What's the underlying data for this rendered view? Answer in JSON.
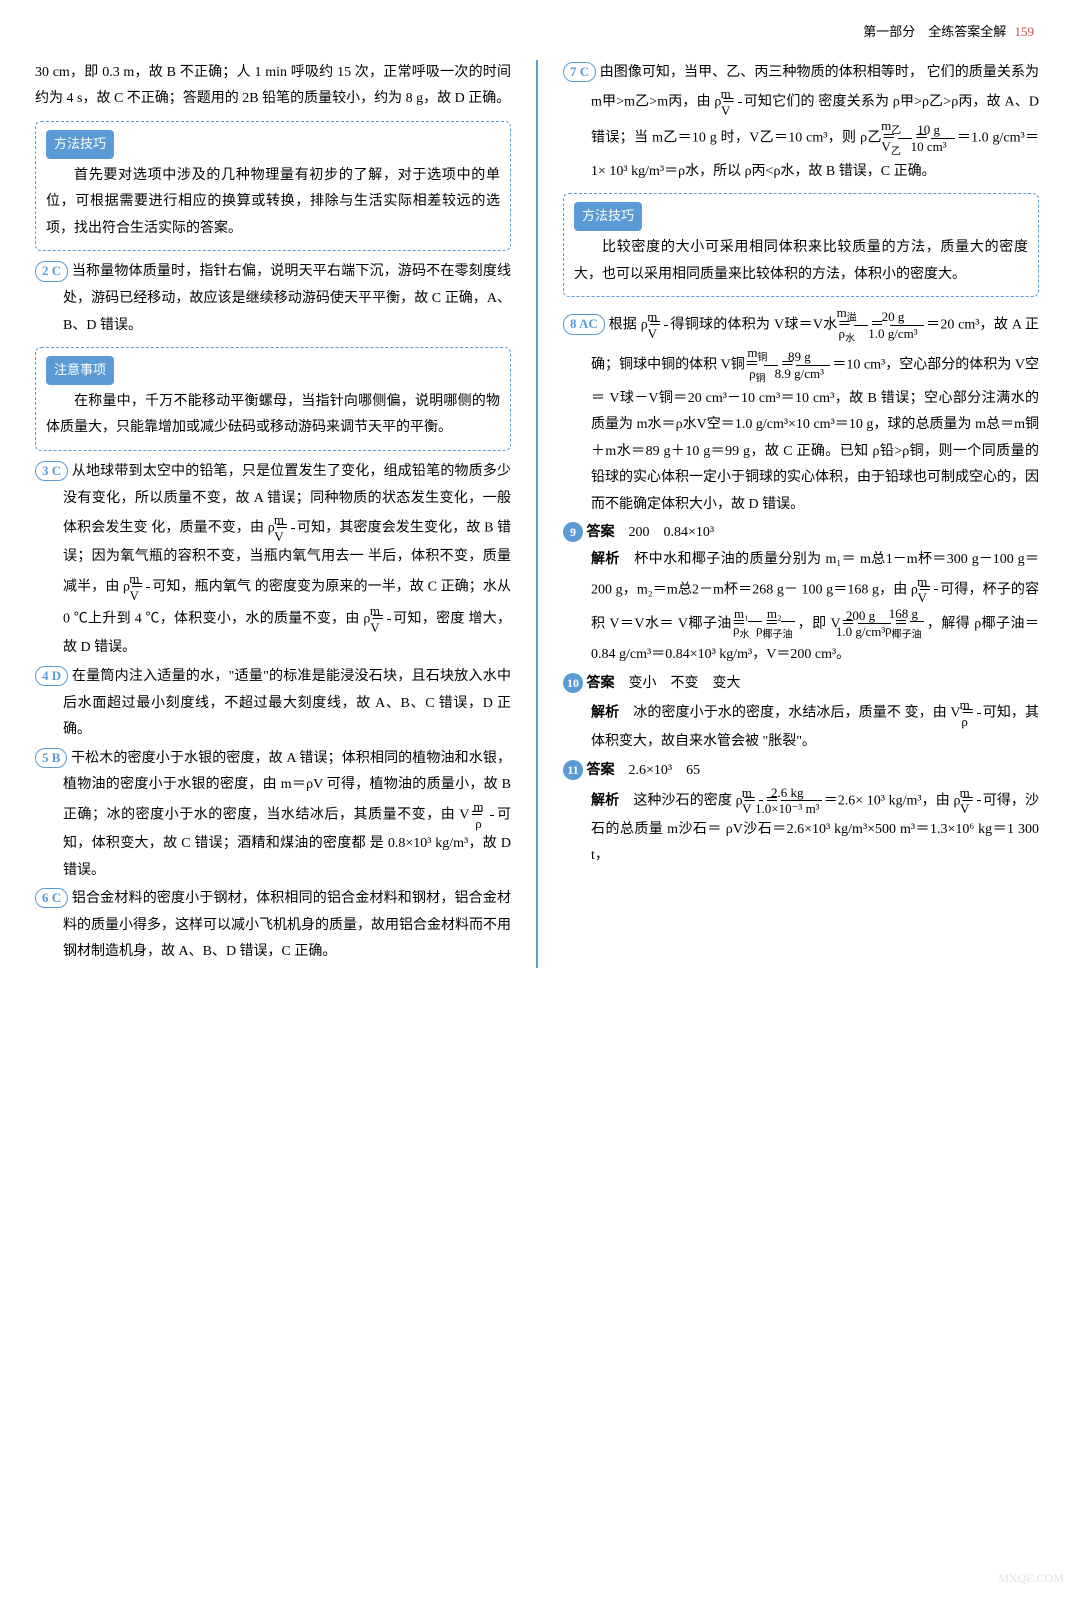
{
  "header": {
    "section": "第一部分　全练答案全解",
    "page": "159"
  },
  "left": {
    "p1": "30 cm，即 0.3 m，故 B 不正确；人 1 min 呼吸约 15 次，正常呼吸一次的时间约为 4 s，故 C 不正确；答题用的 2B 铅笔的质量较小，约为 8 g，故 D 正确。",
    "tip1_label": "方法技巧",
    "tip1": "首先要对选项中涉及的几种物理量有初步的了解，对于选项中的单位，可根据需要进行相应的换算或转换，排除与生活实际相差较远的选项，找出符合生活实际的答案。",
    "q2_num": "2 C",
    "q2": "当称量物体质量时，指针右偏，说明天平右端下沉，游码不在零刻度线处，游码已经移动，故应该是继续移动游码使天平平衡，故 C 正确，A、B、D 错误。",
    "tip2_label": "注意事项",
    "tip2": "在称量中，千万不能移动平衡螺母，当指针向哪侧偏，说明哪侧的物体质量大，只能靠增加或减少砝码或移动游码来调节天平的平衡。",
    "q3_num": "3 C",
    "q3_a": "从地球带到太空中的铅笔，只是位置发生了变化，组成铅笔的物质多少没有变化，所以质量不变，故 A 错误；同种物质的状态发生变化，一般体积会发生变",
    "q3_b": "化，质量不变，由 ρ＝",
    "q3_c": "可知，其密度会发生变化，故",
    "q3_d": "B 错误；因为氧气瓶的容积不变，当瓶内氧气用去一",
    "q3_e": "半后，体积不变，质量减半，由 ρ＝",
    "q3_f": "可知，瓶内氧气",
    "q3_g": "的密度变为原来的一半，故 C 正确；水从 0 ℃上升到",
    "q3_h": "4 ℃，体积变小，水的质量不变，由 ρ＝",
    "q3_i": "可知，密度",
    "q3_j": "增大，故 D 错误。",
    "q4_num": "4 D",
    "q4": "在量筒内注入适量的水，\"适量\"的标准是能浸没石块，且石块放入水中后水面超过最小刻度线，不超过最大刻度线，故 A、B、C 错误，D 正确。",
    "q5_num": "5 B",
    "q5_a": "干松木的密度小于水银的密度，故 A 错误；体积相同的植物油和水银，植物油的密度小于水银的密度，由 m＝ρV 可得，植物油的质量小，故 B 正确；冰的密度小于水的密度，当水结冰后，其质量不变，由 V＝",
    "q5_b": "可知，体积变大，故 C 错误；酒精和煤油的密度都",
    "q5_c": "是 0.8×10³ kg/m³，故 D 错误。",
    "q6_num": "6 C",
    "q6": "铝合金材料的密度小于钢材，体积相同的铝合金材料和钢材，铝合金材料的质量小得多，这样可以减小飞机机身的质量，故用铝合金材料而不用钢材制造机身，故 A、B、D 错误，C 正确。"
  },
  "right": {
    "q7_num": "7 C",
    "q7_a": "由图像可知，当甲、乙、丙三种物质的体积相等时，",
    "q7_b": "它们的质量关系为 m甲>m乙>m丙，由 ρ＝",
    "q7_c": "可知它们的",
    "q7_d": "密度关系为 ρ甲>ρ乙>ρ丙，故 A、D 错误；当 m乙＝10 g",
    "q7_e": "时，V乙＝10 cm³，则 ρ乙＝",
    "q7_f": "＝1.0 g/cm³＝1×",
    "q7_g": "10³ kg/m³＝ρ水，所以 ρ丙<ρ水，故 B 错误，C 正确。",
    "tip3_label": "方法技巧",
    "tip3": "比较密度的大小可采用相同体积来比较质量的方法，质量大的密度大，也可以采用相同质量来比较体积的方法，体积小的密度大。",
    "q8_num": "8 AC",
    "q8_a": "根据 ρ＝",
    "q8_b": "得铜球的体积为 V球＝V水＝",
    "q8_c": "＝",
    "q8_d": "＝20 cm³，故 A 正确；铜球中铜的体积 V铜＝",
    "q8_e": "＝10 cm³，空心部分的体积为 V空＝",
    "q8_f": "V球－V铜＝20 cm³－10 cm³＝10 cm³，故 B 错误；空心部分注满水的质量为 m水＝ρ水V空＝1.0 g/cm³×10 cm³＝10 g，球的总质量为 m总＝m铜＋m水＝89 g＋10 g＝99 g，故 C 正确。已知 ρ铅>ρ铜，则一个同质量的铅球的实心体积一定小于铜球的实心体积，由于铅球也可制成空心的，因而不能确定体积大小，故 D 错误。",
    "q9_num": "9",
    "q9_ans_label": "答案",
    "q9_ans": "200　0.84×10³",
    "q9_exp_label": "解析",
    "q9_a": "杯中水和椰子油的质量分别为 m₁＝",
    "q9_b": "m总1－m杯＝300 g－100 g＝200 g，m₂＝m总2－m杯＝268 g－",
    "q9_c": "100 g＝168 g，由 ρ＝",
    "q9_d": "可得，杯子的容积 V＝V水＝",
    "q9_e": "V椰子油＝",
    "q9_f": "，即 V＝",
    "q9_g": "，解得",
    "q9_h": "ρ椰子油＝0.84 g/cm³＝0.84×10³ kg/m³，V＝200 cm³。",
    "q10_num": "10",
    "q10_ans_label": "答案",
    "q10_ans": "变小　不变　变大",
    "q10_exp_label": "解析",
    "q10_a": "冰的密度小于水的密度，水结冰后，质量不",
    "q10_b": "变，由 V＝",
    "q10_c": "可知，其体积变大，故自来水管会被",
    "q10_d": "\"胀裂\"。",
    "q11_num": "11",
    "q11_ans_label": "答案",
    "q11_ans": "2.6×10³　65",
    "q11_exp_label": "解析",
    "q11_a": "这种沙石的密度 ρ＝",
    "q11_b": "＝2.6×",
    "q11_c": "10³ kg/m³，由 ρ＝",
    "q11_d": "可得，沙石的总质量 m沙石＝",
    "q11_e": "ρV沙石＝2.6×10³ kg/m³×500 m³＝1.3×10⁶ kg＝1 300 t，"
  },
  "watermark": "MXQE.COM"
}
